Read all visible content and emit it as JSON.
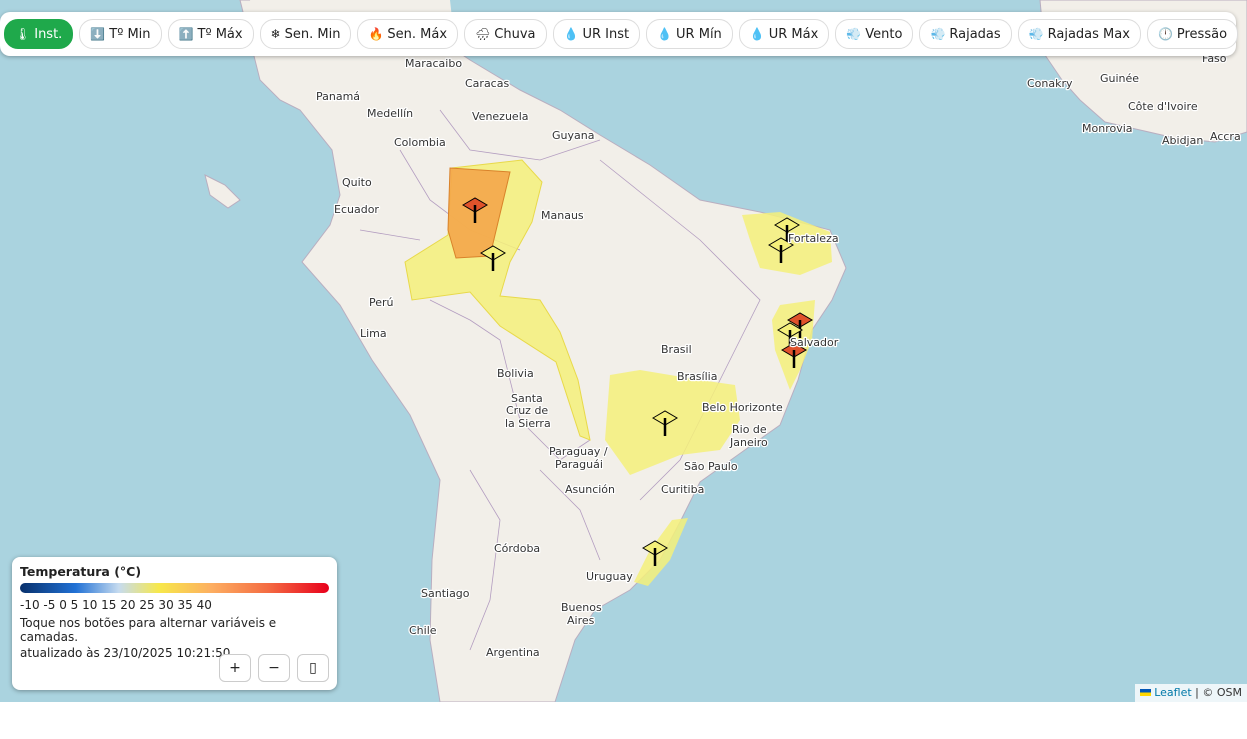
{
  "toolbar": {
    "buttons": [
      {
        "label": "Inst.",
        "icon": "thermometer-icon",
        "active": true
      },
      {
        "label": "Tº Min",
        "icon": "arrow-down-icon"
      },
      {
        "label": "Tº Máx",
        "icon": "arrow-up-icon"
      },
      {
        "label": "Sen. Min",
        "icon": "snowflake-icon"
      },
      {
        "label": "Sen. Máx",
        "icon": "fire-icon"
      },
      {
        "label": "Chuva",
        "icon": "rain-cloud-icon"
      },
      {
        "label": "UR Inst",
        "icon": "droplet-icon"
      },
      {
        "label": "UR Mín",
        "icon": "droplet-icon"
      },
      {
        "label": "UR Máx",
        "icon": "droplet-icon"
      },
      {
        "label": "Vento",
        "icon": "wind-icon"
      },
      {
        "label": "Rajadas",
        "icon": "wind-icon"
      },
      {
        "label": "Rajadas Max",
        "icon": "wind-icon"
      },
      {
        "label": "Pressão",
        "icon": "gauge-icon"
      }
    ]
  },
  "legend": {
    "title": "Temperatura (°C)",
    "ticks": "-10 -5 0 5 10 15 20 25 30 35 40",
    "hint": "Toque nos botões para alternar variáveis e camadas.",
    "updated": "atualizado às 23/10/2025 10:21:50",
    "zoom_in": "+",
    "zoom_out": "−",
    "fullscreen": "▯"
  },
  "map": {
    "labels": [
      "Maracaibo",
      "Caracas",
      "Panamá",
      "Medellín",
      "Venezuela",
      "Colombia",
      "Guyana",
      "Quito",
      "Ecuador",
      "Manaus",
      "Fortaleza",
      "Perú",
      "Lima",
      "Brasil",
      "Salvador",
      "Bolivia",
      "Brasília",
      "Belo Horizonte",
      "Santa",
      "Cruz de",
      "la Sierra",
      "Rio de",
      "Janeiro",
      "São Paulo",
      "Paraguay /",
      "Paraguái",
      "Asunción",
      "Curitiba",
      "Córdoba",
      "Uruguay",
      "Santiago",
      "Buenos",
      "Aires",
      "Chile",
      "Argentina",
      "Conakry",
      "Guinée",
      "Faso",
      "Côte d'Ivoire",
      "Monrovia",
      "Abidjan",
      "Accra"
    ],
    "alert_colors": {
      "yellow": "#f5f07a",
      "orange": "#f4a64a",
      "red": "#e0522b"
    }
  },
  "attribution": {
    "leaflet": "Leaflet",
    "osm": "| © OSM"
  }
}
